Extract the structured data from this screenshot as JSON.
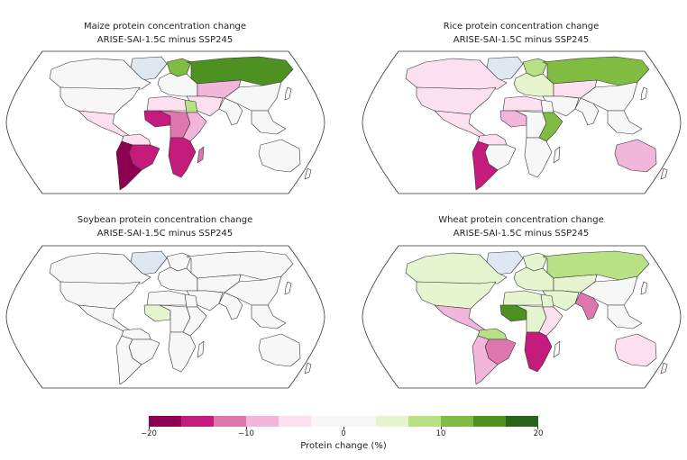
{
  "chart_data": {
    "type": "choropleth",
    "colorbar": {
      "label": "Protein change (%)",
      "range": [
        -20,
        20
      ],
      "ticks": [
        "−20",
        "−10",
        "0",
        "10",
        "20"
      ],
      "tick_values": [
        -20,
        -10,
        0,
        10,
        20
      ],
      "bins": 12,
      "colors": [
        "#8e0152",
        "#c51b7d",
        "#de77ae",
        "#f1b6da",
        "#fde0ef",
        "#f7f7f7",
        "#f7f7f7",
        "#e6f5d0",
        "#b8e186",
        "#7fbc41",
        "#4d9221",
        "#276419"
      ],
      "no_data_color": "#dfe7f1"
    },
    "maps": [
      {
        "title": "Maize protein concentration change",
        "subtitle": "ARISE-SAI-1.5C minus SSP245",
        "values": {
          "greenland": null,
          "canada": 0,
          "usa": 0,
          "mexico_ca": -5,
          "sa_north": -5,
          "brazil": -15,
          "sa_south": -18,
          "europe": 0,
          "scandinavia": 12,
          "russia": 14,
          "central_asia": -7,
          "middle_east": -4,
          "china": 0,
          "india": 0,
          "se_asia": 0,
          "japan": 0,
          "north_africa": -4,
          "egypt": 8,
          "west_africa": -15,
          "central_africa": -12,
          "east_africa": -8,
          "southern_africa": -15,
          "madagascar": -12,
          "australia": 0,
          "nz": 0
        }
      },
      {
        "title": "Rice protein concentration change",
        "subtitle": "ARISE-SAI-1.5C minus SSP245",
        "values": {
          "greenland": null,
          "canada": -4,
          "usa": -6,
          "mexico_ca": -6,
          "sa_north": -5,
          "brazil": 0,
          "sa_south": -16,
          "europe": 5,
          "scandinavia": 9,
          "russia": 10,
          "central_asia": -5,
          "middle_east": 0,
          "china": 0,
          "india": 0,
          "se_asia": 0,
          "japan": 0,
          "north_africa": -4,
          "egypt": 0,
          "west_africa": -8,
          "central_africa": 0,
          "east_africa": 10,
          "southern_africa": 0,
          "madagascar": 0,
          "australia": -7,
          "nz": 0
        }
      },
      {
        "title": "Soybean protein concentration change",
        "subtitle": "ARISE-SAI-1.5C minus SSP245",
        "values": {
          "greenland": null,
          "canada": 0,
          "usa": 0,
          "mexico_ca": 0,
          "sa_north": 0,
          "brazil": 0,
          "sa_south": 0,
          "europe": 0,
          "scandinavia": 0,
          "russia": 0,
          "central_asia": 0,
          "middle_east": 0,
          "china": 0,
          "india": 0,
          "se_asia": 0,
          "japan": 0,
          "north_africa": 0,
          "egypt": 0,
          "west_africa": 4,
          "central_africa": 0,
          "east_africa": 0,
          "southern_africa": 0,
          "madagascar": 0,
          "australia": 0,
          "nz": 0
        }
      },
      {
        "title": "Wheat protein concentration change",
        "subtitle": "ARISE-SAI-1.5C minus SSP245",
        "values": {
          "greenland": null,
          "canada": 4,
          "usa": 4,
          "mexico_ca": -10,
          "sa_north": 7,
          "brazil": -12,
          "sa_south": -8,
          "europe": 4,
          "scandinavia": 4,
          "russia": 8,
          "central_asia": 4,
          "middle_east": 4,
          "china": 0,
          "india": -12,
          "se_asia": 0,
          "japan": 0,
          "north_africa": 4,
          "egypt": 4,
          "west_africa": 14,
          "central_africa": 4,
          "east_africa": -4,
          "southern_africa": -15,
          "madagascar": 0,
          "australia": -4,
          "nz": 0
        }
      }
    ]
  }
}
